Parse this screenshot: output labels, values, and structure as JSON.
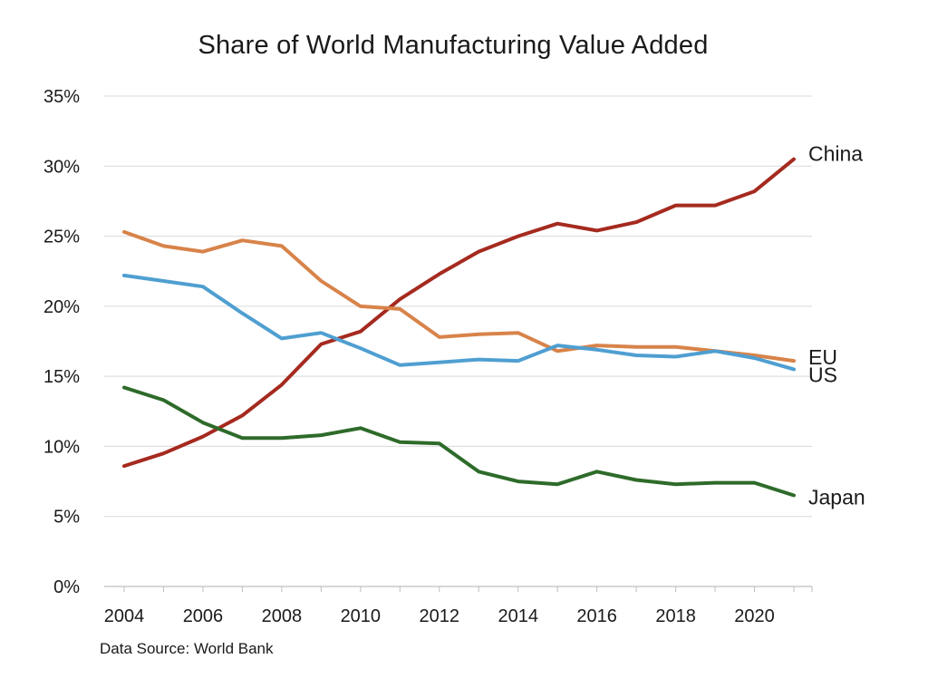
{
  "chart_data": {
    "type": "line",
    "title": "Share of World Manufacturing Value Added",
    "source": "Data Source: World Bank",
    "x": [
      2004,
      2005,
      2006,
      2007,
      2008,
      2009,
      2010,
      2011,
      2012,
      2013,
      2014,
      2015,
      2016,
      2017,
      2018,
      2019,
      2020,
      2021
    ],
    "x_tick_labels": [
      "2004",
      "2006",
      "2008",
      "2010",
      "2012",
      "2014",
      "2016",
      "2018",
      "2020"
    ],
    "x_ticks": [
      2004,
      2006,
      2008,
      2010,
      2012,
      2014,
      2016,
      2018,
      2020
    ],
    "y_ticks": [
      0,
      5,
      10,
      15,
      20,
      25,
      30,
      35
    ],
    "y_tick_labels": [
      "0%",
      "5%",
      "10%",
      "15%",
      "20%",
      "25%",
      "30%",
      "35%"
    ],
    "ylim": [
      0,
      35
    ],
    "xlim": [
      2004,
      2021
    ],
    "grid": true,
    "legend": "direct-labels-right",
    "series": [
      {
        "name": "China",
        "color": "#a52a1f",
        "values": [
          8.6,
          9.5,
          10.7,
          12.2,
          14.4,
          17.3,
          18.2,
          20.5,
          22.3,
          23.9,
          25.0,
          25.9,
          25.4,
          26.0,
          27.2,
          27.2,
          28.2,
          30.5
        ]
      },
      {
        "name": "EU",
        "color": "#d8834a",
        "values": [
          25.3,
          24.3,
          23.9,
          24.7,
          24.3,
          21.8,
          20.0,
          19.8,
          17.8,
          18.0,
          18.1,
          16.8,
          17.2,
          17.1,
          17.1,
          16.8,
          16.5,
          16.1
        ]
      },
      {
        "name": "US",
        "color": "#4f9fd1",
        "values": [
          22.2,
          21.8,
          21.4,
          19.5,
          17.7,
          18.1,
          17.0,
          15.8,
          16.0,
          16.2,
          16.1,
          17.2,
          16.9,
          16.5,
          16.4,
          16.8,
          16.3,
          15.5
        ]
      },
      {
        "name": "Japan",
        "color": "#2e6b2a",
        "values": [
          14.2,
          13.3,
          11.7,
          10.6,
          10.6,
          10.8,
          11.3,
          10.3,
          10.2,
          8.2,
          7.5,
          7.3,
          8.2,
          7.6,
          7.3,
          7.4,
          7.4,
          6.5
        ]
      }
    ]
  }
}
